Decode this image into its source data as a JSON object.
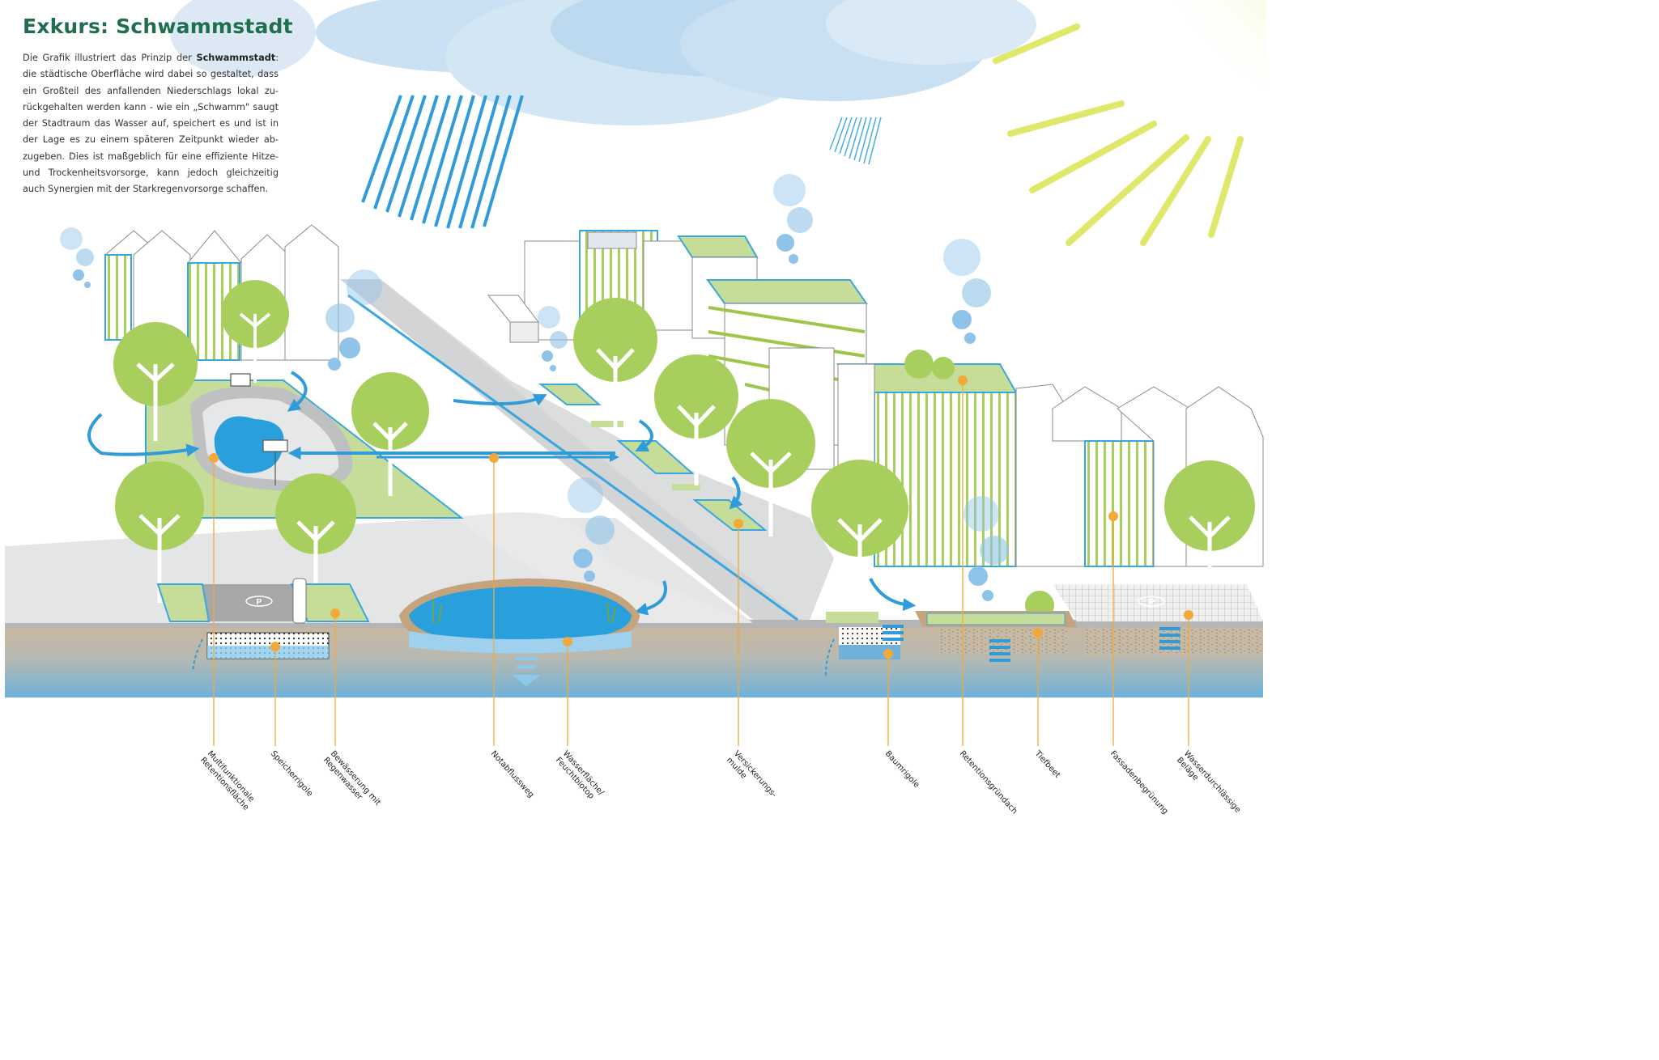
{
  "header": {
    "title": "Exkurs: Schwammstadt",
    "intro_before": "Die Grafik illustriert das Prinzip der ",
    "intro_bold": "Schwammstadt",
    "intro_after": ": die städtische Oberfläche wird dabei so gestaltet, dass ein Großteil des anfallenden Niederschlags lokal zu-rückgehalten werden kann - wie ein „Schwamm\" saugt der Stadtraum das Wasser auf, speichert es und ist in der Lage es zu einem späteren Zeitpunkt wieder ab-zugeben. Dies ist maßgeblich für eine effiziente Hitze- und Trockenheitsvorsorge, kann jedoch gleichzeitig auch Synergien mit der Starkregenvorsorge schaffen."
  },
  "parking_sign": "P",
  "labels": [
    {
      "id": "multifunktionale-retentionsflaeche",
      "text": "Multifunktionale\nRetentionsfläche"
    },
    {
      "id": "speicherrigole",
      "text": "Speicherrigole"
    },
    {
      "id": "bewaesserung-regenwasser",
      "text": "Bewässerung mit\nRegenwasser"
    },
    {
      "id": "notabflussweg",
      "text": "Notabflussweg"
    },
    {
      "id": "wasserflaeche-feuchtbiotop",
      "text": "Wasserfläche/\nFeuchtbiotop"
    },
    {
      "id": "versickerungsmulde",
      "text": "Versickerungs-\nmulde"
    },
    {
      "id": "baumrigole",
      "text": "Baumrigole"
    },
    {
      "id": "retentionsgruendach",
      "text": "Retentionsgründach"
    },
    {
      "id": "tiefbeet",
      "text": "Tiefbeet"
    },
    {
      "id": "fassadenbegruenung",
      "text": "Fassadenbegrünung"
    },
    {
      "id": "wasserdurchlaessige-belaege",
      "text": "Wasserdurchlässige\nBeläge"
    }
  ],
  "colors": {
    "title": "#1f6e4c",
    "water": "#29a0dc",
    "line_blue": "#3aa6e0",
    "green": "#a8cf5e",
    "green_light": "#c9df9c",
    "marker": "#f2a93a",
    "road": "#d6d7d8",
    "soil": "#c9b59c",
    "ground_water": "#8fc3e3",
    "sun": "#e3ea64"
  }
}
